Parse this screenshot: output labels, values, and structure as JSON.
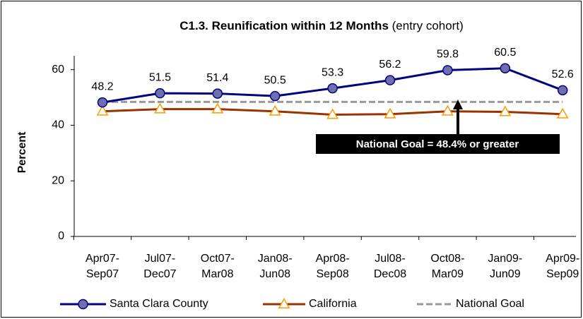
{
  "chart_data": {
    "type": "line",
    "title": "C1.3. Reunification within 12 Months",
    "subtitle": "(entry cohort)",
    "y_label": "Percent",
    "categories": [
      [
        "Apr07-",
        "Sep07"
      ],
      [
        "Jul07-",
        "Dec07"
      ],
      [
        "Oct07-",
        "Mar08"
      ],
      [
        "Jan08-",
        "Jun08"
      ],
      [
        "Apr08-",
        "Sep08"
      ],
      [
        "Jul08-",
        "Dec08"
      ],
      [
        "Oct08-",
        "Mar09"
      ],
      [
        "Jan09-",
        "Jun09"
      ],
      [
        "Apr09-",
        "Sep09"
      ]
    ],
    "series": [
      {
        "name": "Santa Clara County",
        "color": "#000080",
        "marker": "circle",
        "marker_color": "#6f6fae",
        "data_labels": true,
        "values": [
          48.2,
          51.5,
          51.4,
          50.5,
          53.3,
          56.2,
          59.8,
          60.5,
          52.6
        ]
      },
      {
        "name": "California",
        "color": "#993300",
        "marker": "triangle",
        "marker_color": "#ff9900",
        "data_labels": false,
        "values": [
          45.0,
          45.8,
          45.8,
          45.0,
          43.8,
          44.0,
          45.0,
          44.8,
          44.0
        ]
      },
      {
        "name": "National Goal",
        "color": "#999999",
        "dashed": true,
        "data_labels": false,
        "values": [
          48.4,
          48.4,
          48.4,
          48.4,
          48.4,
          48.4,
          48.4,
          48.4,
          48.4
        ]
      }
    ],
    "annotation": "National Goal = 48.4% or greater",
    "ylim": [
      0,
      65
    ],
    "yticks": [
      0,
      20,
      40,
      60
    ],
    "grid": false,
    "legend": "bottom"
  }
}
